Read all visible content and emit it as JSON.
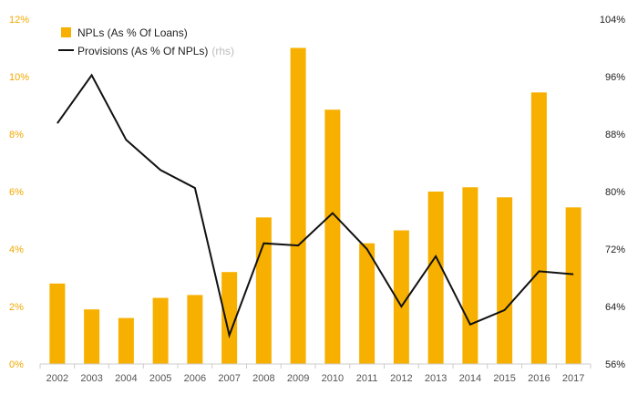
{
  "chart_data": {
    "type": "bar",
    "title": "",
    "categories": [
      "2002",
      "2003",
      "2004",
      "2005",
      "2006",
      "2007",
      "2008",
      "2009",
      "2010",
      "2011",
      "2012",
      "2013",
      "2014",
      "2015",
      "2016",
      "2017"
    ],
    "series": [
      {
        "name": "NPLs (As % Of Loans)",
        "type": "bar",
        "axis": "left",
        "color": "#f7b000",
        "values": [
          2.8,
          1.9,
          1.6,
          2.3,
          2.4,
          3.2,
          5.1,
          11.0,
          8.85,
          4.2,
          4.65,
          6.0,
          6.15,
          5.8,
          9.45,
          5.45
        ]
      },
      {
        "name": "Provisions (As % Of NPLs)",
        "name_note": "(rhs)",
        "type": "line",
        "axis": "right",
        "color": "#111111",
        "values": [
          89.5,
          96.2,
          87.2,
          83.0,
          80.5,
          60.0,
          72.8,
          72.5,
          77.0,
          72.0,
          64.0,
          71.0,
          61.5,
          63.5,
          68.9,
          68.5
        ]
      }
    ],
    "y_left": {
      "min": 0,
      "max": 12,
      "ticks": [
        0,
        2,
        4,
        6,
        8,
        10,
        12
      ],
      "tick_labels": [
        "0%",
        "2%",
        "4%",
        "6%",
        "8%",
        "10%",
        "12%"
      ]
    },
    "y_right": {
      "min": 56,
      "max": 104,
      "ticks": [
        56,
        64,
        72,
        80,
        88,
        96,
        104
      ],
      "tick_labels": [
        "56%",
        "64%",
        "72%",
        "80%",
        "88%",
        "96%",
        "104%"
      ]
    },
    "xlabel": "",
    "ylabel": "",
    "grid": false,
    "legend_position": "top-left"
  },
  "colors": {
    "bar": "#f7b000",
    "line": "#111111",
    "left_tick": "#f2a900",
    "axis_line": "#cccccc"
  }
}
